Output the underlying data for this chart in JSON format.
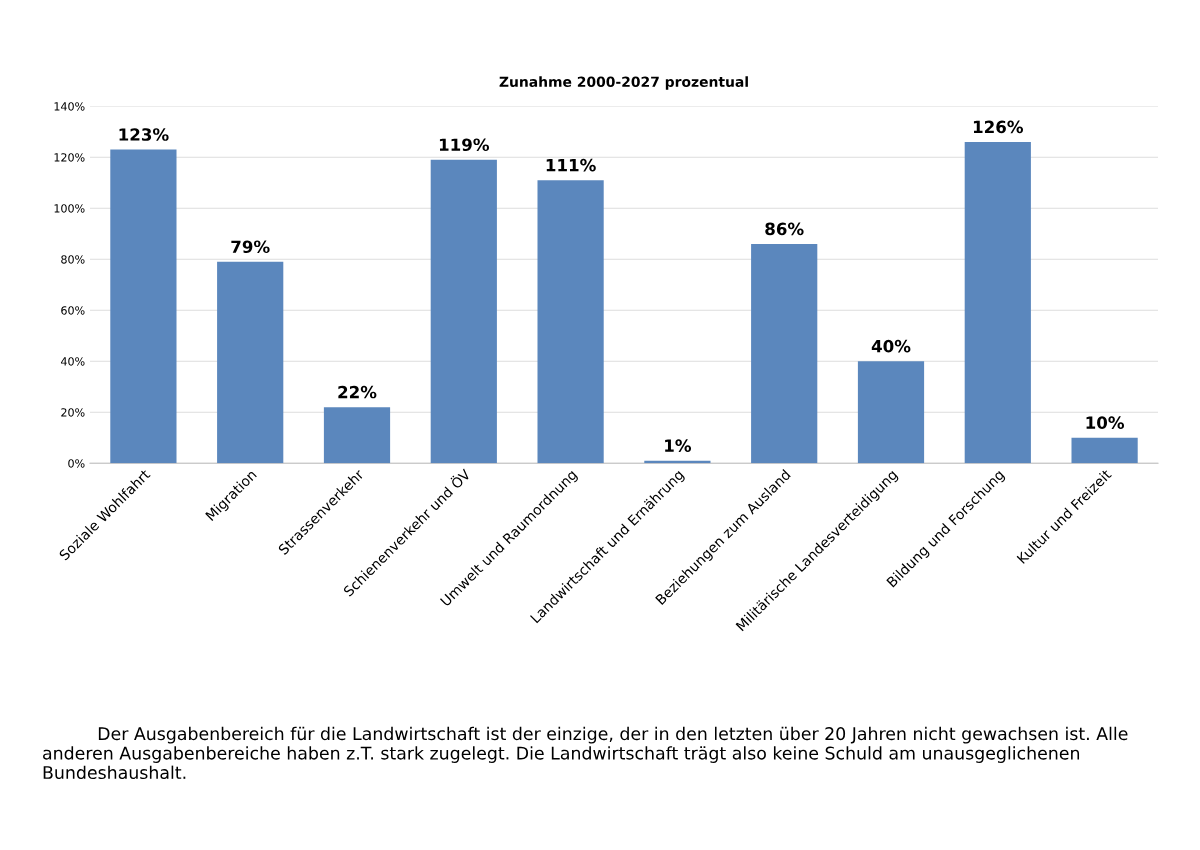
{
  "chart_data": {
    "type": "bar",
    "title": "Zunahme 2000-2027 prozentual",
    "categories": [
      "Soziale Wohlfahrt",
      "Migration",
      "Strassenverkehr",
      "Schienenverkehr und ÖV",
      "Umwelt und Raumordnung",
      "Landwirtschaft und Ernährung",
      "Beziehungen zum Ausland",
      "Militärische Landesverteidigung",
      "Bildung und Forschung",
      "Kultur und Freizeit"
    ],
    "values": [
      123,
      79,
      22,
      119,
      111,
      1,
      86,
      40,
      126,
      10
    ],
    "value_labels": [
      "123%",
      "79%",
      "22%",
      "119%",
      "111%",
      "1%",
      "86%",
      "40%",
      "126%",
      "10%"
    ],
    "color": "#5b87bd",
    "ylim": [
      0,
      140
    ],
    "yticks": [
      {
        "value": 0,
        "label": "0%"
      },
      {
        "value": 20,
        "label": "20%"
      },
      {
        "value": 40,
        "label": "40%"
      },
      {
        "value": 60,
        "label": "60%"
      },
      {
        "value": 80,
        "label": "80%"
      },
      {
        "value": 100,
        "label": "100%"
      },
      {
        "value": 120,
        "label": "120%"
      },
      {
        "value": 140,
        "label": "140%"
      }
    ],
    "grid": "y",
    "annotations": [
      "Der Ausgabenbereich für die Landwirtschaft ist der einzige, der in den letzten über 20 Jahren nicht gewachsen ist. Alle anderen Ausgabenbereiche haben z.T. stark zugelegt. Die Landwirtschaft trägt also keine Schuld am unausgeglichenen Bundeshaushalt."
    ]
  }
}
